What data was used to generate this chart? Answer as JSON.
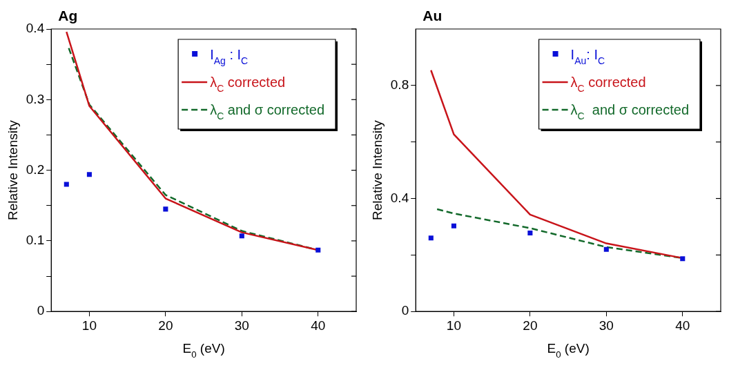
{
  "chart_data": [
    {
      "type": "line",
      "title": "Ag",
      "xlabel": "E$_{0}$ (eV)",
      "ylabel": "Relative Intensity",
      "xlim": [
        5,
        45
      ],
      "xticks": [
        10,
        20,
        30,
        40
      ],
      "ylim": [
        0,
        0.4
      ],
      "yticks": [
        0,
        {
          "value": 0.05,
          "label": null
        },
        0.1,
        {
          "value": 0.15,
          "label": null
        },
        0.2,
        {
          "value": 0.25,
          "label": null
        },
        0.3,
        {
          "value": 0.35,
          "label": null
        },
        0.4
      ],
      "grid": false,
      "legend": "top right",
      "series": [
        {
          "name": "I$_{Ag}$ : I$_{C}$",
          "type": "scatter",
          "marker": "square",
          "color": "#0a10d8",
          "x": [
            7,
            10,
            20,
            30,
            40
          ],
          "values": [
            0.18,
            0.194,
            0.145,
            0.107,
            0.087
          ]
        },
        {
          "name": "λ$_{C}$ corrected",
          "line_style": "solid",
          "color": "#c8141a",
          "x": [
            7,
            10,
            20,
            30,
            40
          ],
          "values": [
            0.396,
            0.291,
            0.16,
            0.112,
            0.087
          ]
        },
        {
          "name": "λ$_{C}$ and σ corrected",
          "line_style": "dashed",
          "color": "#12692a",
          "x": [
            7.3,
            10,
            20,
            30,
            40
          ],
          "values": [
            0.373,
            0.293,
            0.165,
            0.114,
            0.087
          ]
        }
      ]
    },
    {
      "type": "line",
      "title": "Au",
      "xlabel": "E$_{0}$ (eV)",
      "ylabel": "Relative Intensity",
      "xlim": [
        5,
        45
      ],
      "xticks": [
        10,
        20,
        30,
        40
      ],
      "ylim": [
        0,
        1
      ],
      "yticks": [
        0,
        {
          "value": 0.2,
          "label": null
        },
        0.4,
        {
          "value": 0.6,
          "label": null
        },
        0.8
      ],
      "grid": false,
      "legend": "top right",
      "series": [
        {
          "name": "I$_{Au}$: I$_{C}$",
          "type": "scatter",
          "marker": "square",
          "color": "#0a10d8",
          "x": [
            7,
            10,
            20,
            30,
            40
          ],
          "values": [
            0.26,
            0.303,
            0.278,
            0.22,
            0.187
          ]
        },
        {
          "name": "λ$_{C}$ corrected",
          "line_style": "solid",
          "color": "#c8141a",
          "x": [
            7,
            10,
            20,
            30,
            40
          ],
          "values": [
            0.854,
            0.627,
            0.343,
            0.241,
            0.189
          ]
        },
        {
          "name": "λ$_{C}$  and σ corrected",
          "line_style": "dashed",
          "color": "#12692a",
          "x": [
            7.8,
            10,
            20,
            30,
            40
          ],
          "values": [
            0.362,
            0.347,
            0.295,
            0.228,
            0.189
          ]
        }
      ]
    }
  ]
}
